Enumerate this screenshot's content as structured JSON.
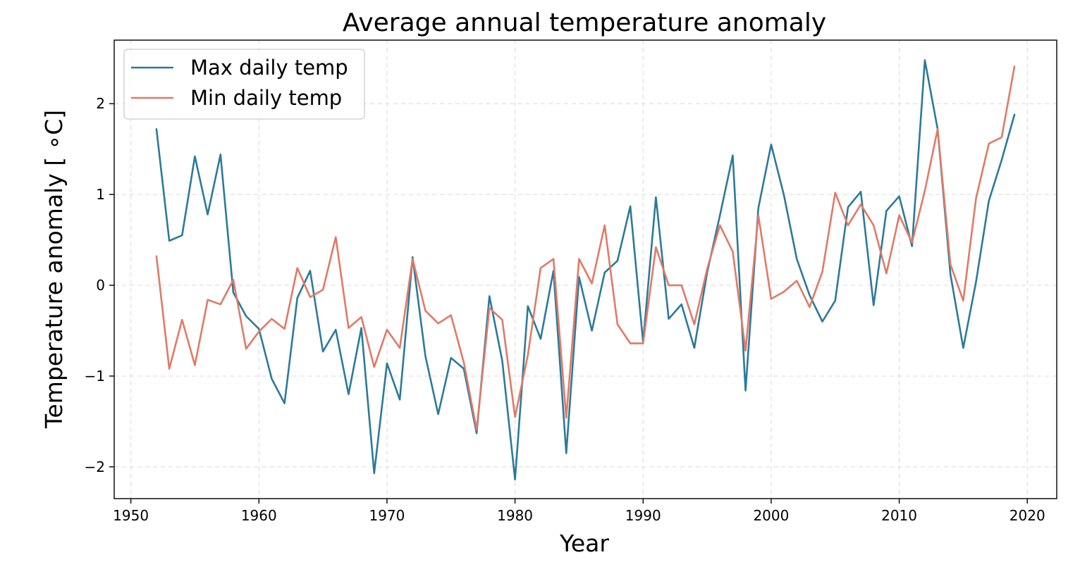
{
  "chart_data": {
    "type": "line",
    "title": "Average annual temperature anomaly",
    "xlabel": "Year",
    "ylabel": "Temperature anomaly [ ∘C]",
    "xlim": [
      1948.7,
      2022.3
    ],
    "ylim": [
      -2.35,
      2.7
    ],
    "xticks": [
      1950,
      1960,
      1970,
      1980,
      1990,
      2000,
      2010,
      2020
    ],
    "yticks": [
      -2,
      -1,
      0,
      1,
      2
    ],
    "ytick_labels": [
      "−2",
      "−1",
      "0",
      "1",
      "2"
    ],
    "grid": true,
    "legend_position": "upper-left",
    "x": [
      1952,
      1953,
      1954,
      1955,
      1956,
      1957,
      1958,
      1959,
      1960,
      1961,
      1962,
      1963,
      1964,
      1965,
      1966,
      1967,
      1968,
      1969,
      1970,
      1971,
      1972,
      1973,
      1974,
      1975,
      1976,
      1977,
      1978,
      1979,
      1980,
      1981,
      1982,
      1983,
      1984,
      1985,
      1986,
      1987,
      1988,
      1989,
      1990,
      1991,
      1992,
      1993,
      1994,
      1995,
      1996,
      1997,
      1998,
      1999,
      2000,
      2001,
      2002,
      2003,
      2004,
      2005,
      2006,
      2007,
      2008,
      2009,
      2010,
      2011,
      2012,
      2013,
      2014,
      2015,
      2016,
      2017,
      2018,
      2019
    ],
    "series": [
      {
        "name": "Max daily temp",
        "color": "#2b7a9b",
        "values": [
          1.72,
          0.49,
          0.55,
          1.42,
          0.78,
          1.44,
          -0.08,
          -0.34,
          -0.48,
          -1.03,
          -1.3,
          -0.14,
          0.16,
          -0.73,
          -0.49,
          -1.2,
          -0.47,
          -2.07,
          -0.86,
          -1.26,
          0.31,
          -0.78,
          -1.42,
          -0.8,
          -0.92,
          -1.63,
          -0.12,
          -0.83,
          -2.14,
          -0.23,
          -0.59,
          0.16,
          -1.85,
          0.09,
          -0.5,
          0.14,
          0.27,
          0.87,
          -0.63,
          0.97,
          -0.37,
          -0.21,
          -0.69,
          0.14,
          0.77,
          1.43,
          -1.16,
          0.85,
          1.55,
          0.99,
          0.29,
          -0.11,
          -0.4,
          -0.17,
          0.86,
          1.03,
          -0.22,
          0.82,
          0.98,
          0.43,
          2.48,
          1.72,
          0.12,
          -0.69,
          0.04,
          0.93,
          1.38,
          1.88
        ]
      },
      {
        "name": "Min daily temp",
        "color": "#e07a66",
        "values": [
          0.32,
          -0.92,
          -0.38,
          -0.88,
          -0.16,
          -0.21,
          0.06,
          -0.7,
          -0.51,
          -0.37,
          -0.48,
          0.19,
          -0.13,
          -0.05,
          0.53,
          -0.47,
          -0.35,
          -0.9,
          -0.49,
          -0.69,
          0.29,
          -0.28,
          -0.42,
          -0.33,
          -0.85,
          -1.59,
          -0.25,
          -0.38,
          -1.45,
          -0.77,
          0.19,
          0.29,
          -1.46,
          0.29,
          0.02,
          0.66,
          -0.43,
          -0.64,
          -0.64,
          0.42,
          0.0,
          0.0,
          -0.43,
          0.18,
          0.66,
          0.37,
          -0.72,
          0.77,
          -0.15,
          -0.07,
          0.05,
          -0.24,
          0.15,
          1.02,
          0.66,
          0.89,
          0.66,
          0.13,
          0.77,
          0.47,
          1.04,
          1.72,
          0.23,
          -0.17,
          0.96,
          1.56,
          1.63,
          2.41
        ]
      }
    ]
  }
}
